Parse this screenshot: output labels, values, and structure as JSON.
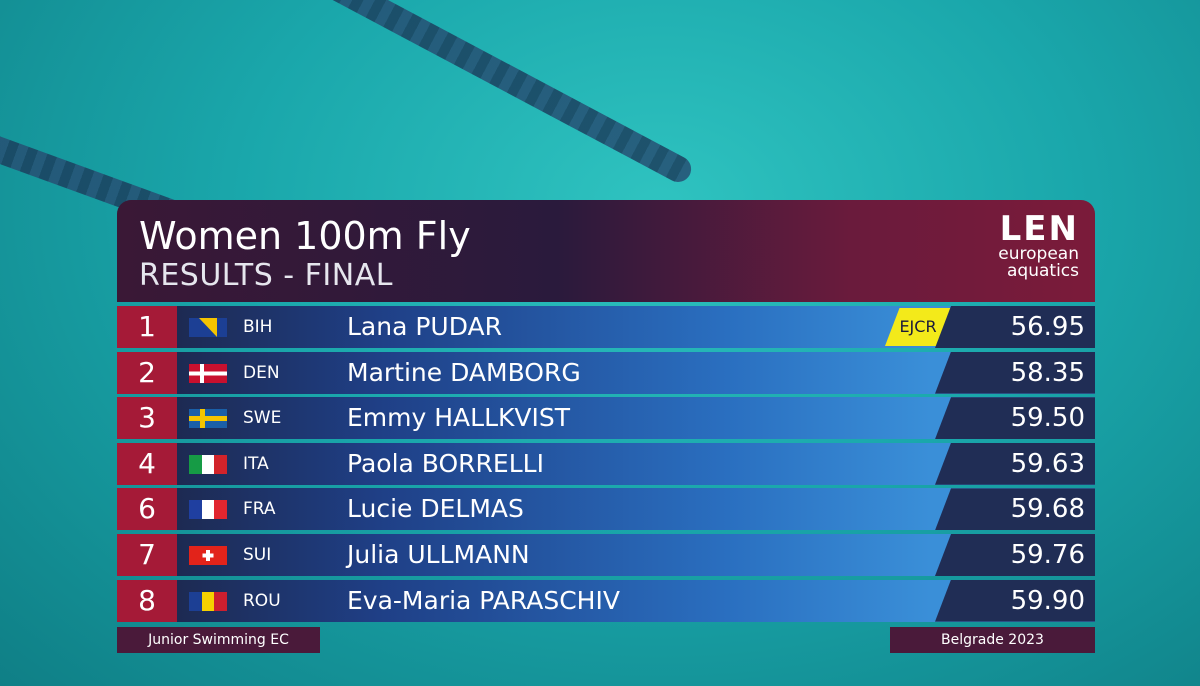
{
  "header": {
    "title": "Women 100m Fly",
    "subtitle": "RESULTS - FINAL",
    "logo": {
      "mark": "LEN",
      "line1": "european",
      "line2": "aquatics"
    }
  },
  "results": [
    {
      "rank": 1,
      "country": "BIH",
      "name": "Lana PUDAR",
      "record": "EJCR",
      "time": "56.95"
    },
    {
      "rank": 2,
      "country": "DEN",
      "name": "Martine DAMBORG",
      "time": "58.35"
    },
    {
      "rank": 3,
      "country": "SWE",
      "name": "Emmy HALLKVIST",
      "time": "59.50"
    },
    {
      "rank": 4,
      "country": "ITA",
      "name": "Paola BORRELLI",
      "time": "59.63"
    },
    {
      "rank": 6,
      "country": "FRA",
      "name": "Lucie DELMAS",
      "time": "59.68"
    },
    {
      "rank": 7,
      "country": "SUI",
      "name": "Julia ULLMANN",
      "time": "59.76"
    },
    {
      "rank": 8,
      "country": "ROU",
      "name": "Eva-Maria PARASCHIV",
      "time": "59.90"
    }
  ],
  "footer": {
    "event": "Junior Swimming EC",
    "location": "Belgrade 2023"
  }
}
